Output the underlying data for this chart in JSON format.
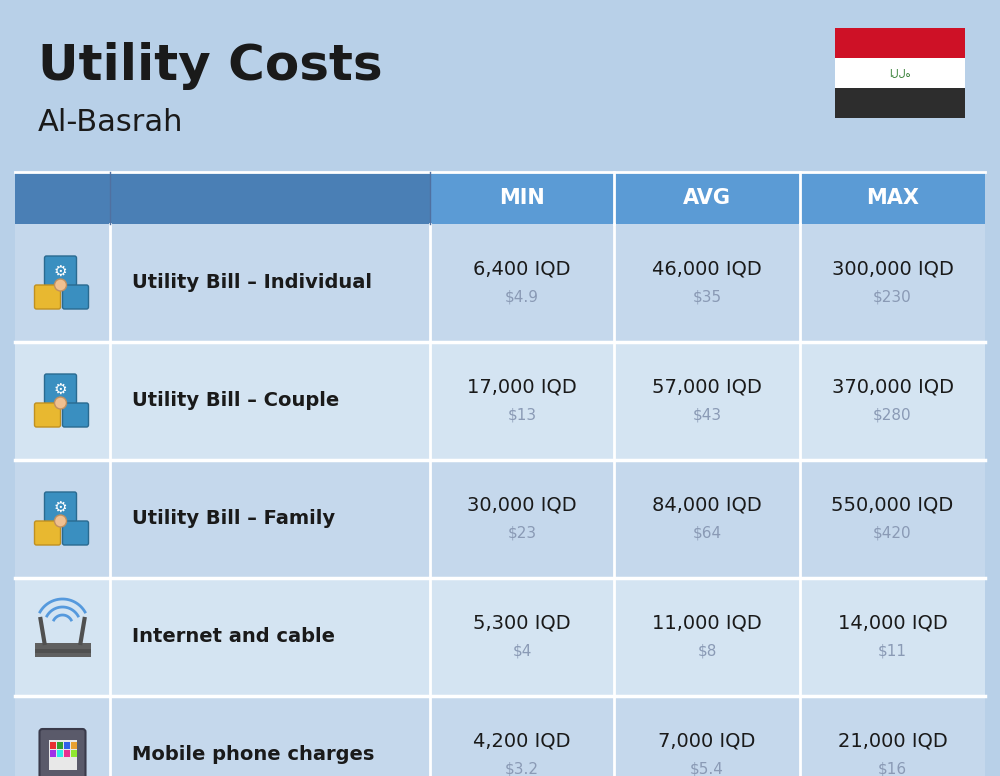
{
  "title": "Utility Costs",
  "subtitle": "Al-Basrah",
  "background_color": "#b8d0e8",
  "header_dark_color": "#4a7fb5",
  "header_light_color": "#5b9bd5",
  "row_color_a": "#c5d8ec",
  "row_color_b": "#d4e4f2",
  "separator_color": "#ffffff",
  "text_color": "#1a1a1a",
  "usd_color": "#8a9ab5",
  "header_text_color": "#ffffff",
  "columns": [
    "MIN",
    "AVG",
    "MAX"
  ],
  "rows": [
    {
      "label": "Utility Bill – Individual",
      "min_iqd": "6,400 IQD",
      "min_usd": "$4.9",
      "avg_iqd": "46,000 IQD",
      "avg_usd": "$35",
      "max_iqd": "300,000 IQD",
      "max_usd": "$230"
    },
    {
      "label": "Utility Bill – Couple",
      "min_iqd": "17,000 IQD",
      "min_usd": "$13",
      "avg_iqd": "57,000 IQD",
      "avg_usd": "$43",
      "max_iqd": "370,000 IQD",
      "max_usd": "$280"
    },
    {
      "label": "Utility Bill – Family",
      "min_iqd": "30,000 IQD",
      "min_usd": "$23",
      "avg_iqd": "84,000 IQD",
      "avg_usd": "$64",
      "max_iqd": "550,000 IQD",
      "max_usd": "$420"
    },
    {
      "label": "Internet and cable",
      "min_iqd": "5,300 IQD",
      "min_usd": "$4",
      "avg_iqd": "11,000 IQD",
      "avg_usd": "$8",
      "max_iqd": "14,000 IQD",
      "max_usd": "$11"
    },
    {
      "label": "Mobile phone charges",
      "min_iqd": "4,200 IQD",
      "min_usd": "$3.2",
      "avg_iqd": "7,000 IQD",
      "avg_usd": "$5.4",
      "max_iqd": "21,000 IQD",
      "max_usd": "$16"
    }
  ],
  "title_fontsize": 36,
  "subtitle_fontsize": 22,
  "header_fontsize": 15,
  "label_fontsize": 14,
  "value_fontsize": 14,
  "usd_fontsize": 11,
  "flag_red": "#ce1126",
  "flag_white": "#ffffff",
  "flag_black": "#2d2d2d",
  "flag_green": "#2d7a2d"
}
